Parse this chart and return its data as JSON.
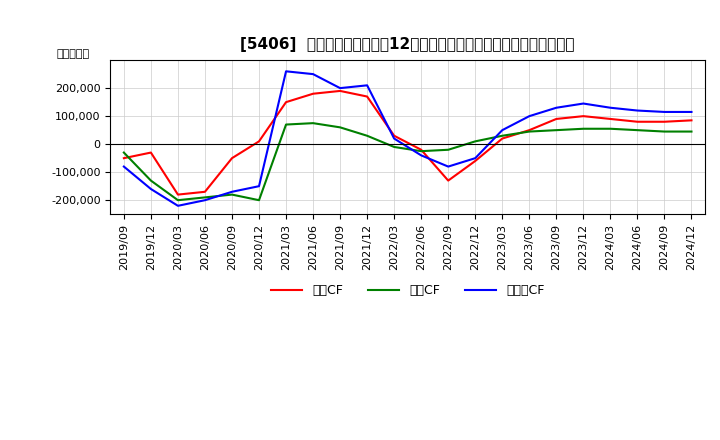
{
  "title": "[5406]  キャッシュフローの12か月移動合計の対前年同期増減額の推移",
  "ylabel": "（百万円）",
  "ylim": [
    -250000,
    300000
  ],
  "yticks": [
    -200000,
    -100000,
    0,
    100000,
    200000
  ],
  "dates": [
    "2019/09",
    "2019/12",
    "2020/03",
    "2020/06",
    "2020/09",
    "2020/12",
    "2021/03",
    "2021/06",
    "2021/09",
    "2021/12",
    "2022/03",
    "2022/06",
    "2022/09",
    "2022/12",
    "2023/03",
    "2023/06",
    "2023/09",
    "2023/12",
    "2024/03",
    "2024/06",
    "2024/09",
    "2024/12"
  ],
  "eigyo_cf": [
    -50000,
    -30000,
    -180000,
    -170000,
    -50000,
    10000,
    150000,
    180000,
    190000,
    170000,
    30000,
    -20000,
    -130000,
    -60000,
    20000,
    50000,
    90000,
    100000,
    90000,
    80000,
    80000,
    85000
  ],
  "toshi_cf": [
    -30000,
    -130000,
    -200000,
    -190000,
    -180000,
    -200000,
    70000,
    75000,
    60000,
    30000,
    -10000,
    -25000,
    -20000,
    10000,
    30000,
    45000,
    50000,
    55000,
    55000,
    50000,
    45000,
    45000
  ],
  "free_cf": [
    -80000,
    -160000,
    -220000,
    -200000,
    -170000,
    -150000,
    260000,
    250000,
    200000,
    210000,
    20000,
    -40000,
    -80000,
    -50000,
    50000,
    100000,
    130000,
    145000,
    130000,
    120000,
    115000,
    115000
  ],
  "color_eigyo": "#ff0000",
  "color_toshi": "#008000",
  "color_free": "#0000ff",
  "label_eigyo": "営業CF",
  "label_toshi": "投資CF",
  "label_free": "フリーCF",
  "background_color": "#ffffff",
  "grid_color": "#cccccc",
  "title_fontsize": 11,
  "tick_fontsize": 8,
  "ylabel_fontsize": 8,
  "legend_fontsize": 9
}
